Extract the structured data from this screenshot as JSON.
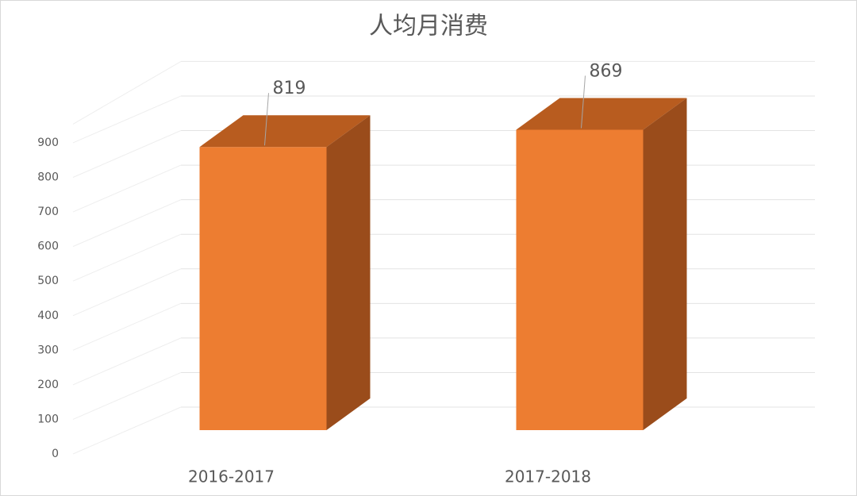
{
  "chart_data": {
    "type": "bar3d",
    "title": "人均月消费",
    "categories": [
      "2016-2017",
      "2017-2018"
    ],
    "values": [
      819,
      869
    ],
    "color": "#ed7d31",
    "ylim": [
      0,
      1000
    ],
    "yticks": [
      0,
      100,
      200,
      300,
      400,
      500,
      600,
      700,
      800,
      900
    ],
    "grid": true
  }
}
